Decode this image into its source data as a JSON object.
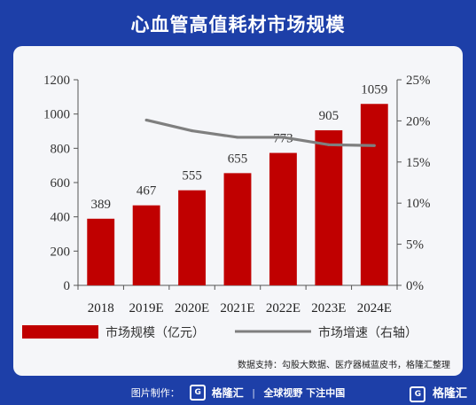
{
  "title": "心血管高值耗材市场规模",
  "source_note": "数据支持：勾股大数据、医疗器械蓝皮书，格隆汇整理",
  "footer": {
    "made_by": "图片制作：",
    "brand": "格隆汇",
    "slogan": "全球视野 下注中国",
    "right_brand": "格隆汇"
  },
  "chart_data": {
    "type": "bar",
    "categories": [
      "2018",
      "2019E",
      "2020E",
      "2021E",
      "2022E",
      "2023E",
      "2024E"
    ],
    "series": [
      {
        "name": "市场规模（亿元）",
        "type": "bar",
        "axis": "left",
        "color": "#c00000",
        "values": [
          389,
          467,
          555,
          655,
          773,
          905,
          1059
        ]
      },
      {
        "name": "市场增速（右轴）",
        "type": "line",
        "axis": "right",
        "color": "#7f7f7f",
        "values": [
          null,
          20.1,
          18.8,
          18.0,
          18.0,
          17.1,
          17.0
        ]
      }
    ],
    "ylim": [
      0,
      1200
    ],
    "yticks": [
      "0",
      "200",
      "400",
      "600",
      "800",
      "1000",
      "1200"
    ],
    "y2lim": [
      0,
      25
    ],
    "y2ticks": [
      "0%",
      "5%",
      "10%",
      "15%",
      "20%",
      "25%"
    ],
    "legend_position": "bottom"
  }
}
